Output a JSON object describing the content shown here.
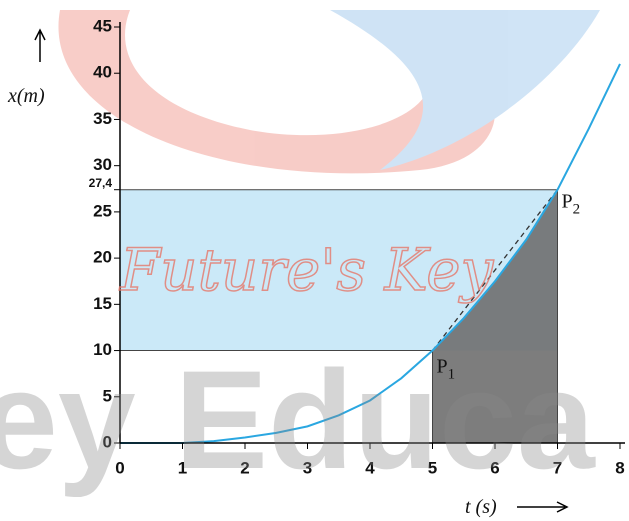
{
  "chart_data": {
    "type": "line",
    "xlabel": "t (s)",
    "ylabel": "x(m)",
    "x": [
      0,
      1,
      1.5,
      2,
      2.5,
      3,
      3.5,
      4,
      4.5,
      5,
      5.5,
      6,
      6.5,
      7,
      7.5,
      8
    ],
    "series": [
      {
        "color": "#2aa7e1",
        "values": [
          0,
          0,
          0.2,
          0.6,
          1.1,
          1.8,
          3,
          4.6,
          7,
          10,
          13.5,
          17.5,
          22,
          27.4,
          34,
          41
        ]
      }
    ],
    "xlim": [
      0,
      8
    ],
    "ylim": [
      0,
      45
    ],
    "xticks": [
      0,
      1,
      2,
      3,
      4,
      5,
      6,
      7,
      8
    ],
    "yticks": [
      0,
      5,
      10,
      15,
      20,
      25,
      {
        "value": 27.4,
        "label": "27,4"
      },
      30,
      35,
      40,
      45
    ],
    "annotations": [
      {
        "label": "P",
        "subscript": "1",
        "x": 5,
        "y": 10
      },
      {
        "label": "P",
        "subscript": "2",
        "x": 7,
        "y": 27.4
      }
    ],
    "watermarks": [
      "Future's Key",
      "ey Educa"
    ]
  }
}
